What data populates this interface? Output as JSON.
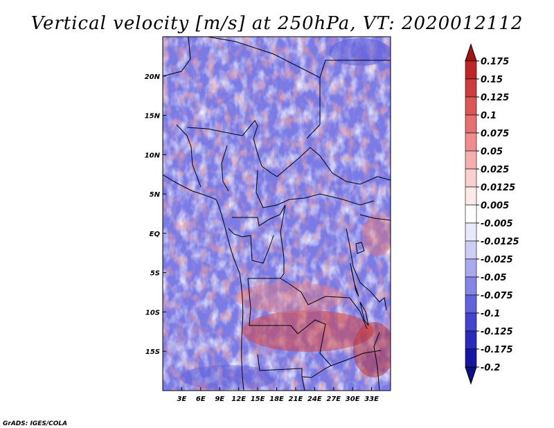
{
  "chart_data": {
    "type": "heatmap",
    "title": "Vertical velocity [m/s] at 250hPa, VT: 2020012112",
    "variable": "Vertical velocity",
    "units": "m/s",
    "level": "250hPa",
    "valid_time": "2020012112",
    "lon_range": [
      0,
      36
    ],
    "lat_range": [
      -20,
      25
    ],
    "x_ticks": [
      {
        "value": 3,
        "label": "3E"
      },
      {
        "value": 6,
        "label": "6E"
      },
      {
        "value": 9,
        "label": "9E"
      },
      {
        "value": 12,
        "label": "12E"
      },
      {
        "value": 15,
        "label": "15E"
      },
      {
        "value": 18,
        "label": "18E"
      },
      {
        "value": 21,
        "label": "21E"
      },
      {
        "value": 24,
        "label": "24E"
      },
      {
        "value": 27,
        "label": "27E"
      },
      {
        "value": 30,
        "label": "30E"
      },
      {
        "value": 33,
        "label": "33E"
      }
    ],
    "y_ticks": [
      {
        "value": 20,
        "label": "20N"
      },
      {
        "value": 15,
        "label": "15N"
      },
      {
        "value": 10,
        "label": "10N"
      },
      {
        "value": 5,
        "label": "5N"
      },
      {
        "value": 0,
        "label": "EQ"
      },
      {
        "value": -5,
        "label": "5S"
      },
      {
        "value": -10,
        "label": "10S"
      },
      {
        "value": -15,
        "label": "15S"
      }
    ],
    "colorbar": {
      "labels": [
        "0.175",
        "0.15",
        "0.125",
        "0.1",
        "0.075",
        "0.05",
        "0.025",
        "0.0125",
        "0.005",
        "-0.005",
        "-0.0125",
        "-0.025",
        "-0.05",
        "-0.075",
        "-0.1",
        "-0.125",
        "-0.175",
        "-0.2"
      ],
      "colors": [
        "#a01414",
        "#be2626",
        "#cf3c3c",
        "#dc5656",
        "#e67070",
        "#ef8d8d",
        "#f6adad",
        "#fbcfcf",
        "#fde9e9",
        "#ffffff",
        "#e8e8fb",
        "#cdcdf6",
        "#a9a9f0",
        "#8585e8",
        "#6262de",
        "#4444d0",
        "#2a2abd",
        "#1717a3",
        "#0f0f85"
      ]
    }
  },
  "footer": {
    "credit": "GrADS: IGES/COLA"
  }
}
